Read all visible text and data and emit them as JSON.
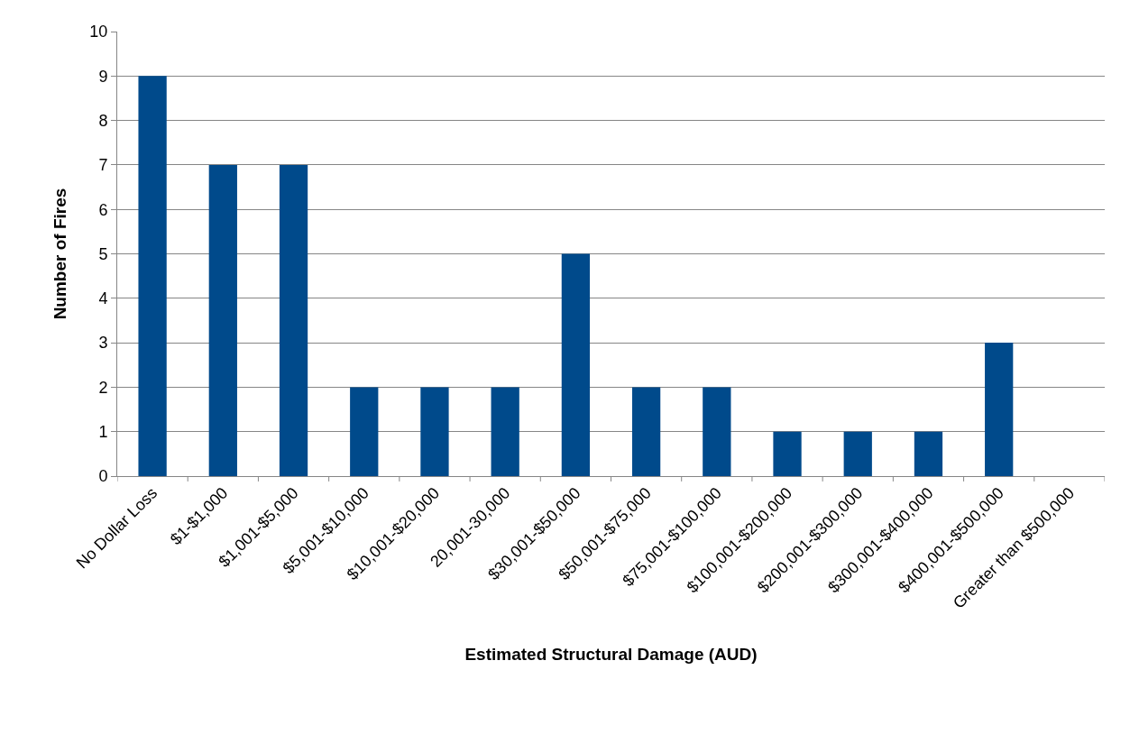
{
  "chart_data": {
    "type": "bar",
    "xlabel": "Estimated Structural Damage (AUD)",
    "ylabel": "Number of Fires",
    "categories": [
      "No Dollar Loss",
      "$1-$1,000",
      "$1,001-$5,000",
      "$5,001-$10,000",
      "$10,001-$20,000",
      "20,001-30,000",
      "$30,001-$50,000",
      "$50,001-$75,000",
      "$75,001-$100,000",
      "$100,001-$200,000",
      "$200,001-$300,000",
      "$300,001-$400,000",
      "$400,001-$500,000",
      "Greater than $500,000"
    ],
    "values": [
      9,
      7,
      7,
      2,
      2,
      2,
      5,
      2,
      2,
      1,
      1,
      1,
      3,
      0
    ],
    "color": "#004a8b",
    "ylim": [
      0,
      10
    ],
    "yticks": [
      0,
      1,
      2,
      3,
      4,
      5,
      6,
      7,
      8,
      9,
      10
    ],
    "grid": "y"
  }
}
